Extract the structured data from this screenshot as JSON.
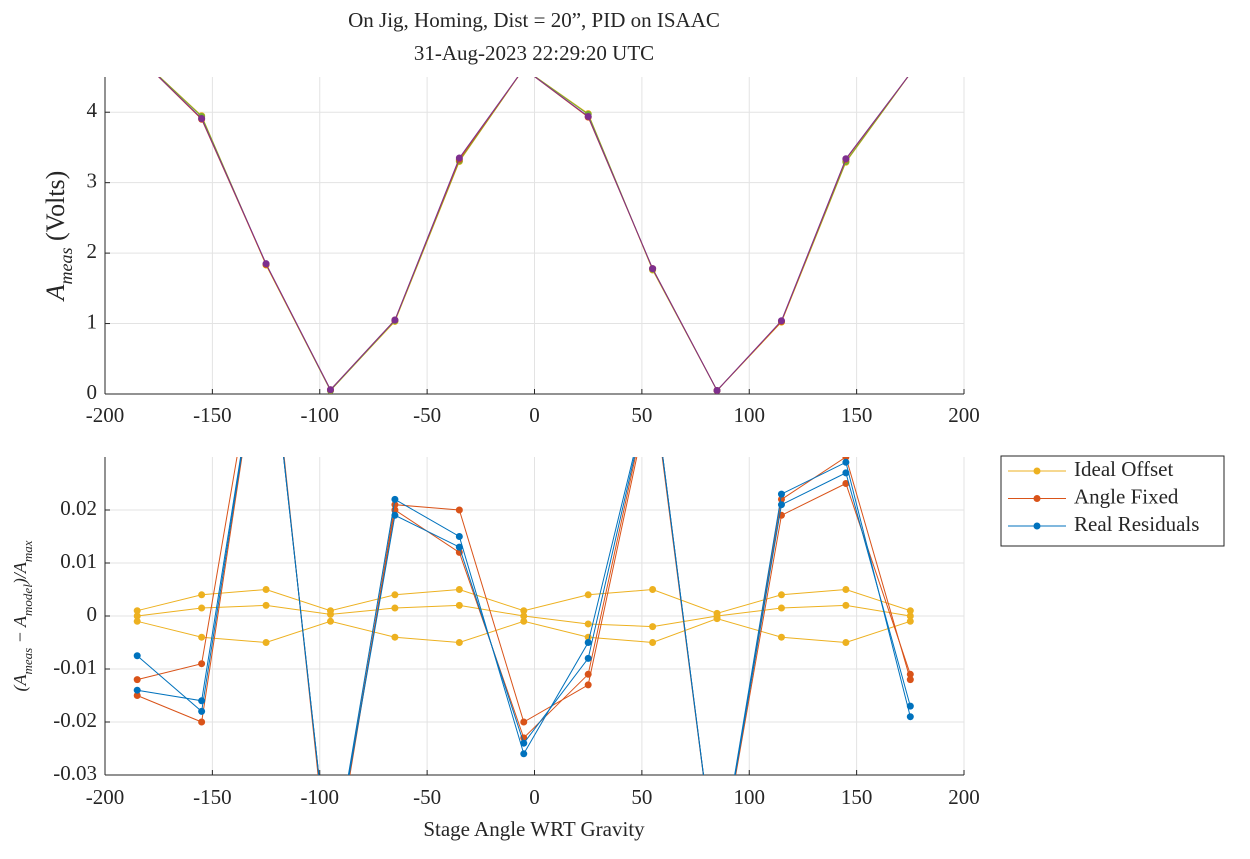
{
  "title": [
    "On Jig, Homing, Dist = 20”, PID on ISAAC",
    "31-Aug-2023 22:29:20 UTC"
  ],
  "chart_data": [
    {
      "type": "line",
      "ylabel_parts": [
        "A",
        "meas",
        " (Volts)"
      ],
      "x": [
        -185,
        -155,
        -125,
        -95,
        -65,
        -35,
        -5,
        25,
        55,
        85,
        115,
        145,
        175
      ],
      "series": [
        {
          "color": "#EDB120",
          "values": [
            4.8,
            3.95,
            1.83,
            0.05,
            1.03,
            3.3,
            4.62,
            3.98,
            1.76,
            0.05,
            1.02,
            3.29,
            4.55
          ]
        },
        {
          "color": "#77AC30",
          "values": [
            4.8,
            3.94,
            1.84,
            0.05,
            1.04,
            3.31,
            4.62,
            3.97,
            1.77,
            0.05,
            1.03,
            3.3,
            4.55
          ]
        },
        {
          "color": "#D95319",
          "values": [
            4.8,
            3.9,
            1.84,
            0.06,
            1.05,
            3.33,
            4.62,
            3.93,
            1.78,
            0.05,
            1.03,
            3.33,
            4.55
          ]
        },
        {
          "color": "#7E2F8E",
          "values": [
            4.8,
            3.91,
            1.85,
            0.06,
            1.05,
            3.35,
            4.62,
            3.94,
            1.78,
            0.05,
            1.04,
            3.34,
            4.55
          ]
        }
      ],
      "xlim": [
        -200,
        200
      ],
      "xticks": [
        -200,
        -150,
        -100,
        -50,
        0,
        50,
        100,
        150,
        200
      ],
      "ylim": [
        0,
        4.5
      ],
      "yticks": [
        0,
        1,
        2,
        3,
        4
      ],
      "grid": true
    },
    {
      "type": "line",
      "ylabel_parts": [
        "(A",
        "meas",
        " − A",
        "model",
        ")/A",
        "max"
      ],
      "xlabel": "Stage Angle WRT Gravity",
      "x": [
        -185,
        -155,
        -125,
        -95,
        -65,
        -35,
        -5,
        25,
        55,
        85,
        115,
        145,
        175
      ],
      "series": [
        {
          "name": "Ideal Offset",
          "color": "#EDB120",
          "values": [
            0.001,
            0.004,
            0.005,
            0.001,
            0.004,
            0.005,
            0.001,
            0.004,
            0.005,
            0.0005,
            0.004,
            0.005,
            0.001
          ]
        },
        {
          "color": "#EDB120",
          "values": [
            -0.001,
            -0.004,
            -0.005,
            -0.001,
            -0.004,
            -0.005,
            -0.001,
            -0.004,
            -0.005,
            -0.0005,
            -0.004,
            -0.005,
            -0.001
          ]
        },
        {
          "color": "#EDB120",
          "values": [
            0,
            0.0015,
            0.002,
            0.0003,
            0.0015,
            0.002,
            0,
            -0.0015,
            -0.002,
            0,
            0.0015,
            0.002,
            0
          ]
        },
        {
          "name": "Angle Fixed",
          "color": "#D95319",
          "values": [
            -0.015,
            -0.02,
            0.06,
            -0.05,
            0.02,
            0.012,
            -0.023,
            -0.011,
            0.045,
            -0.05,
            0.019,
            0.025,
            -0.011
          ]
        },
        {
          "color": "#D95319",
          "values": [
            -0.012,
            -0.009,
            0.062,
            -0.052,
            0.021,
            0.02,
            -0.02,
            -0.013,
            0.044,
            -0.05,
            0.022,
            0.03,
            -0.012
          ]
        },
        {
          "name": "Real Residuals",
          "color": "#0072BD",
          "values": [
            -0.014,
            -0.016,
            0.06,
            -0.05,
            0.019,
            0.013,
            -0.024,
            -0.008,
            0.045,
            -0.05,
            0.021,
            0.027,
            -0.017
          ]
        },
        {
          "color": "#0072BD",
          "values": [
            -0.0075,
            -0.018,
            0.06,
            -0.05,
            0.022,
            0.015,
            -0.026,
            -0.005,
            0.045,
            -0.05,
            0.023,
            0.029,
            -0.019
          ]
        }
      ],
      "xlim": [
        -200,
        200
      ],
      "xticks": [
        -200,
        -150,
        -100,
        -50,
        0,
        50,
        100,
        150,
        200
      ],
      "ylim": [
        -0.03,
        0.03
      ],
      "yticks": [
        -0.03,
        -0.02,
        -0.01,
        0,
        0.01,
        0.02
      ],
      "grid": true,
      "legend": "outside-right"
    }
  ]
}
